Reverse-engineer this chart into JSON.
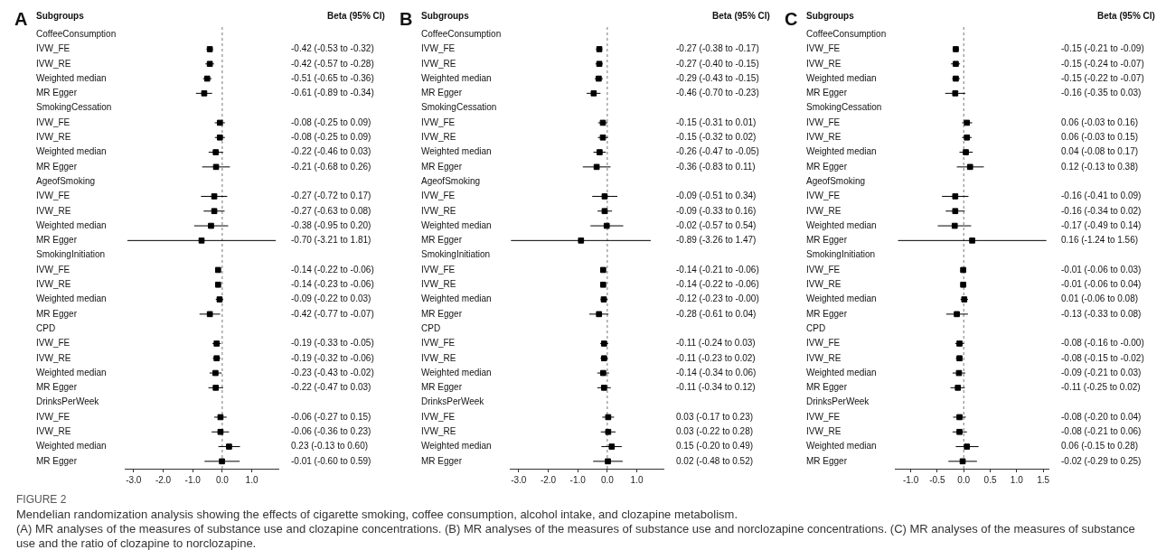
{
  "chart_data": [
    {
      "type": "scatter",
      "orientation": "horizontal",
      "title": "A",
      "marker": "square",
      "color": "#000000",
      "categories": [
        "CoffeeConsumption",
        "IVW_FE",
        "IVW_RE",
        "Weighted median",
        "MR Egger",
        "SmokingCessation",
        "IVW_FE",
        "IVW_RE",
        "Weighted median",
        "MR Egger",
        "AgeofSmoking",
        "IVW_FE",
        "IVW_RE",
        "Weighted median",
        "MR Egger",
        "SmokingInitiation",
        "IVW_FE",
        "IVW_RE",
        "Weighted median",
        "MR Egger",
        "CPD",
        "IVW_FE",
        "IVW_RE",
        "Weighted median",
        "MR Egger",
        "DrinksPerWeek",
        "IVW_FE",
        "IVW_RE",
        "Weighted median",
        "MR Egger"
      ],
      "values": [
        null,
        -0.42,
        -0.42,
        -0.51,
        -0.61,
        null,
        -0.08,
        -0.08,
        -0.22,
        -0.21,
        null,
        -0.27,
        -0.27,
        -0.38,
        -0.7,
        null,
        -0.14,
        -0.14,
        -0.09,
        -0.42,
        null,
        -0.19,
        -0.19,
        -0.23,
        -0.22,
        null,
        -0.06,
        -0.06,
        0.23,
        -0.01
      ],
      "errors": [
        null,
        [
          -0.53,
          -0.32
        ],
        [
          -0.57,
          -0.28
        ],
        [
          -0.65,
          -0.36
        ],
        [
          -0.89,
          -0.34
        ],
        null,
        [
          -0.25,
          0.09
        ],
        [
          -0.25,
          0.09
        ],
        [
          -0.46,
          0.03
        ],
        [
          -0.68,
          0.26
        ],
        null,
        [
          -0.72,
          0.17
        ],
        [
          -0.63,
          0.08
        ],
        [
          -0.95,
          0.2
        ],
        [
          -3.21,
          1.81
        ],
        null,
        [
          -0.22,
          -0.06
        ],
        [
          -0.23,
          -0.06
        ],
        [
          -0.22,
          0.03
        ],
        [
          -0.77,
          -0.07
        ],
        null,
        [
          -0.33,
          -0.05
        ],
        [
          -0.32,
          -0.06
        ],
        [
          -0.43,
          -0.02
        ],
        [
          -0.47,
          0.03
        ],
        null,
        [
          -0.27,
          0.15
        ],
        [
          -0.36,
          0.23
        ],
        [
          -0.13,
          0.6
        ],
        [
          -0.6,
          0.59
        ]
      ],
      "value_labels": [
        null,
        "-0.42 (-0.53 to -0.32)",
        "-0.42 (-0.57 to -0.28)",
        "-0.51 (-0.65 to -0.36)",
        "-0.61 (-0.89 to -0.34)",
        null,
        "-0.08 (-0.25 to 0.09)",
        "-0.08 (-0.25 to 0.09)",
        "-0.22 (-0.46 to 0.03)",
        "-0.21 (-0.68 to 0.26)",
        null,
        "-0.27 (-0.72 to 0.17)",
        "-0.27 (-0.63 to 0.08)",
        "-0.38 (-0.95 to 0.20)",
        "-0.70 (-3.21 to 1.81)",
        null,
        "-0.14 (-0.22 to -0.06)",
        "-0.14 (-0.23 to -0.06)",
        "-0.09 (-0.22 to 0.03)",
        "-0.42 (-0.77 to -0.07)",
        null,
        "-0.19 (-0.33 to -0.05)",
        "-0.19 (-0.32 to -0.06)",
        "-0.23 (-0.43 to -0.02)",
        "-0.22 (-0.47 to 0.03)",
        null,
        "-0.06 (-0.27 to 0.15)",
        "-0.06 (-0.36 to 0.23)",
        "0.23 (-0.13 to 0.60)",
        "-0.01 (-0.60 to 0.59)"
      ],
      "xlim": [
        -3.3,
        1.9
      ],
      "xticks": [
        {
          "value": -3,
          "label": "-3.0"
        },
        {
          "value": -2,
          "label": "-2.0"
        },
        {
          "value": -1,
          "label": "-1.0"
        },
        {
          "value": 0,
          "label": "0.0"
        },
        {
          "value": 1,
          "label": "1.0"
        }
      ],
      "ref_lines": [
        {
          "axis": "x",
          "value": 0,
          "line_style": "dashed"
        }
      ],
      "annotations": [
        "Subgroups",
        "Beta (95% CI)",
        "FIGURE 2",
        "Mendelian randomization analysis showing the effects of cigarette smoking, coffee consumption, alcohol intake, and clozapine metabolism.",
        "(A) MR analyses of the measures of substance use and clozapine concentrations. (B) MR analyses of the measures of substance use and norclozapine concentrations. (C) MR analyses of the measures of substance use and the ratio of clozapine to norclozapine."
      ]
    },
    {
      "type": "scatter",
      "orientation": "horizontal",
      "title": "B",
      "marker": "square",
      "color": "#000000",
      "categories": [
        "CoffeeConsumption",
        "IVW_FE",
        "IVW_RE",
        "Weighted median",
        "MR Egger",
        "SmokingCessation",
        "IVW_FE",
        "IVW_RE",
        "Weighted median",
        "MR Egger",
        "AgeofSmoking",
        "IVW_FE",
        "IVW_RE",
        "Weighted median",
        "MR Egger",
        "SmokingInitiation",
        "IVW_FE",
        "IVW_RE",
        "Weighted median",
        "MR Egger",
        "CPD",
        "IVW_FE",
        "IVW_RE",
        "Weighted median",
        "MR Egger",
        "DrinksPerWeek",
        "IVW_FE",
        "IVW_RE",
        "Weighted median",
        "MR Egger"
      ],
      "values": [
        null,
        -0.27,
        -0.27,
        -0.29,
        -0.46,
        null,
        -0.15,
        -0.15,
        -0.26,
        -0.36,
        null,
        -0.09,
        -0.09,
        -0.02,
        -0.89,
        null,
        -0.14,
        -0.14,
        -0.12,
        -0.28,
        null,
        -0.11,
        -0.11,
        -0.14,
        -0.11,
        null,
        0.03,
        0.03,
        0.15,
        0.02
      ],
      "errors": [
        null,
        [
          -0.38,
          -0.17
        ],
        [
          -0.4,
          -0.15
        ],
        [
          -0.43,
          -0.15
        ],
        [
          -0.7,
          -0.23
        ],
        null,
        [
          -0.31,
          0.01
        ],
        [
          -0.32,
          0.02
        ],
        [
          -0.47,
          -0.05
        ],
        [
          -0.83,
          0.11
        ],
        null,
        [
          -0.51,
          0.34
        ],
        [
          -0.33,
          0.16
        ],
        [
          -0.57,
          0.54
        ],
        [
          -3.26,
          1.47
        ],
        null,
        [
          -0.21,
          -0.06
        ],
        [
          -0.22,
          -0.06
        ],
        [
          -0.23,
          0
        ],
        [
          -0.61,
          0.04
        ],
        null,
        [
          -0.24,
          0.03
        ],
        [
          -0.23,
          0.02
        ],
        [
          -0.34,
          0.06
        ],
        [
          -0.34,
          0.12
        ],
        null,
        [
          -0.17,
          0.23
        ],
        [
          -0.22,
          0.28
        ],
        [
          -0.2,
          0.49
        ],
        [
          -0.48,
          0.52
        ]
      ],
      "value_labels": [
        null,
        "-0.27 (-0.38 to -0.17)",
        "-0.27 (-0.40 to -0.15)",
        "-0.29 (-0.43 to -0.15)",
        "-0.46 (-0.70 to -0.23)",
        null,
        "-0.15 (-0.31 to 0.01)",
        "-0.15 (-0.32 to 0.02)",
        "-0.26 (-0.47 to -0.05)",
        "-0.36 (-0.83 to 0.11)",
        null,
        "-0.09 (-0.51 to 0.34)",
        "-0.09 (-0.33 to 0.16)",
        "-0.02 (-0.57 to 0.54)",
        "-0.89 (-3.26 to 1.47)",
        null,
        "-0.14 (-0.21 to -0.06)",
        "-0.14 (-0.22 to -0.06)",
        "-0.12 (-0.23 to -0.00)",
        "-0.28 (-0.61 to 0.04)",
        null,
        "-0.11 (-0.24 to 0.03)",
        "-0.11 (-0.23 to 0.02)",
        "-0.14 (-0.34 to 0.06)",
        "-0.11 (-0.34 to 0.12)",
        null,
        "0.03 (-0.17 to 0.23)",
        "0.03 (-0.22 to 0.28)",
        "0.15 (-0.20 to 0.49)",
        "0.02 (-0.48 to 0.52)"
      ],
      "xlim": [
        -3.3,
        1.9
      ],
      "xticks": [
        {
          "value": -3,
          "label": "-3.0"
        },
        {
          "value": -2,
          "label": "-2.0"
        },
        {
          "value": -1,
          "label": "-1.0"
        },
        {
          "value": 0,
          "label": "0.0"
        },
        {
          "value": 1,
          "label": "1.0"
        }
      ],
      "ref_lines": [
        {
          "axis": "x",
          "value": 0,
          "line_style": "dashed"
        }
      ],
      "annotations": [
        "Subgroups",
        "Beta (95% CI)"
      ]
    },
    {
      "type": "scatter",
      "orientation": "horizontal",
      "title": "C",
      "marker": "square",
      "color": "#000000",
      "categories": [
        "CoffeeConsumption",
        "IVW_FE",
        "IVW_RE",
        "Weighted median",
        "MR Egger",
        "SmokingCessation",
        "IVW_FE",
        "IVW_RE",
        "Weighted median",
        "MR Egger",
        "AgeofSmoking",
        "IVW_FE",
        "IVW_RE",
        "Weighted median",
        "MR Egger",
        "SmokingInitiation",
        "IVW_FE",
        "IVW_RE",
        "Weighted median",
        "MR Egger",
        "CPD",
        "IVW_FE",
        "IVW_RE",
        "Weighted median",
        "MR Egger",
        "DrinksPerWeek",
        "IVW_FE",
        "IVW_RE",
        "Weighted median",
        "MR Egger"
      ],
      "values": [
        null,
        -0.15,
        -0.15,
        -0.15,
        -0.16,
        null,
        0.06,
        0.06,
        0.04,
        0.12,
        null,
        -0.16,
        -0.16,
        -0.17,
        0.16,
        null,
        -0.01,
        -0.01,
        0.01,
        -0.13,
        null,
        -0.08,
        -0.08,
        -0.09,
        -0.11,
        null,
        -0.08,
        -0.08,
        0.06,
        -0.02
      ],
      "errors": [
        null,
        [
          -0.21,
          -0.09
        ],
        [
          -0.24,
          -0.07
        ],
        [
          -0.22,
          -0.07
        ],
        [
          -0.35,
          0.03
        ],
        null,
        [
          -0.03,
          0.16
        ],
        [
          -0.03,
          0.15
        ],
        [
          -0.08,
          0.17
        ],
        [
          -0.13,
          0.38
        ],
        null,
        [
          -0.41,
          0.09
        ],
        [
          -0.34,
          0.02
        ],
        [
          -0.49,
          0.14
        ],
        [
          -1.24,
          1.56
        ],
        null,
        [
          -0.06,
          0.03
        ],
        [
          -0.06,
          0.04
        ],
        [
          -0.06,
          0.08
        ],
        [
          -0.33,
          0.08
        ],
        null,
        [
          -0.16,
          0
        ],
        [
          -0.15,
          -0.02
        ],
        [
          -0.21,
          0.03
        ],
        [
          -0.25,
          0.02
        ],
        null,
        [
          -0.2,
          0.04
        ],
        [
          -0.21,
          0.06
        ],
        [
          -0.15,
          0.28
        ],
        [
          -0.29,
          0.25
        ]
      ],
      "value_labels": [
        null,
        "-0.15 (-0.21 to -0.09)",
        "-0.15 (-0.24 to -0.07)",
        "-0.15 (-0.22 to -0.07)",
        "-0.16 (-0.35 to 0.03)",
        null,
        "0.06 (-0.03 to 0.16)",
        "0.06 (-0.03 to 0.15)",
        "0.04 (-0.08 to 0.17)",
        "0.12 (-0.13 to 0.38)",
        null,
        "-0.16 (-0.41 to 0.09)",
        "-0.16 (-0.34 to 0.02)",
        "-0.17 (-0.49 to 0.14)",
        "0.16 (-1.24 to 1.56)",
        null,
        "-0.01 (-0.06 to 0.03)",
        "-0.01 (-0.06 to 0.04)",
        "0.01 (-0.06 to 0.08)",
        "-0.13 (-0.33 to 0.08)",
        null,
        "-0.08 (-0.16 to -0.00)",
        "-0.08 (-0.15 to -0.02)",
        "-0.09 (-0.21 to 0.03)",
        "-0.11 (-0.25 to 0.02)",
        null,
        "-0.08 (-0.20 to 0.04)",
        "-0.08 (-0.21 to 0.06)",
        "0.06 (-0.15 to 0.28)",
        "-0.02 (-0.29 to 0.25)"
      ],
      "xlim": [
        -1.3,
        1.6
      ],
      "xticks": [
        {
          "value": -1,
          "label": "-1.0"
        },
        {
          "value": -0.5,
          "label": "-0.5"
        },
        {
          "value": 0,
          "label": "0.0"
        },
        {
          "value": 0.5,
          "label": "0.5"
        },
        {
          "value": 1,
          "label": "1.0"
        },
        {
          "value": 1.5,
          "label": "1.5"
        }
      ],
      "ref_lines": [
        {
          "axis": "x",
          "value": 0,
          "line_style": "dashed"
        }
      ],
      "annotations": [
        "Subgroups",
        "Beta (95% CI)"
      ]
    }
  ]
}
